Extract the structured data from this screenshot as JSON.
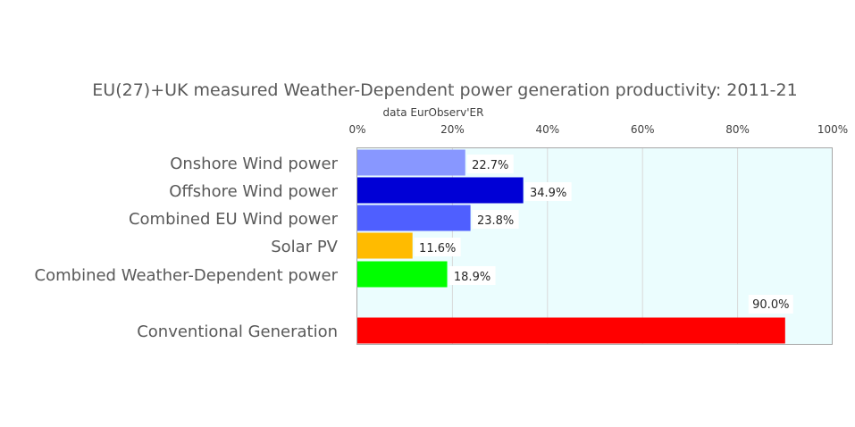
{
  "chart_data": {
    "type": "bar",
    "orientation": "horizontal",
    "title": "EU(27)+UK measured Weather-Dependent power generation productivity: 2011-21",
    "subtitle": "data EurObserv'ER",
    "x_ticks": [
      "0%",
      "20%",
      "40%",
      "60%",
      "80%",
      "100%"
    ],
    "xlim": [
      0,
      100
    ],
    "grid": true,
    "plot_background": "#ebfdfe",
    "categories": [
      "Onshore Wind power",
      "Offshore Wind power",
      "Combined EU Wind power",
      "Solar PV",
      "Combined Weather-Dependent power",
      "Conventional Generation"
    ],
    "values": [
      22.7,
      34.9,
      23.8,
      11.6,
      18.9,
      90.0
    ],
    "data_labels": [
      "22.7%",
      "34.9%",
      "23.8%",
      "11.6%",
      "18.9%",
      "90.0%"
    ],
    "colors": [
      "#8897ff",
      "#0000d6",
      "#4f5fff",
      "#ffbb00",
      "#00ff00",
      "#ff0000"
    ]
  }
}
